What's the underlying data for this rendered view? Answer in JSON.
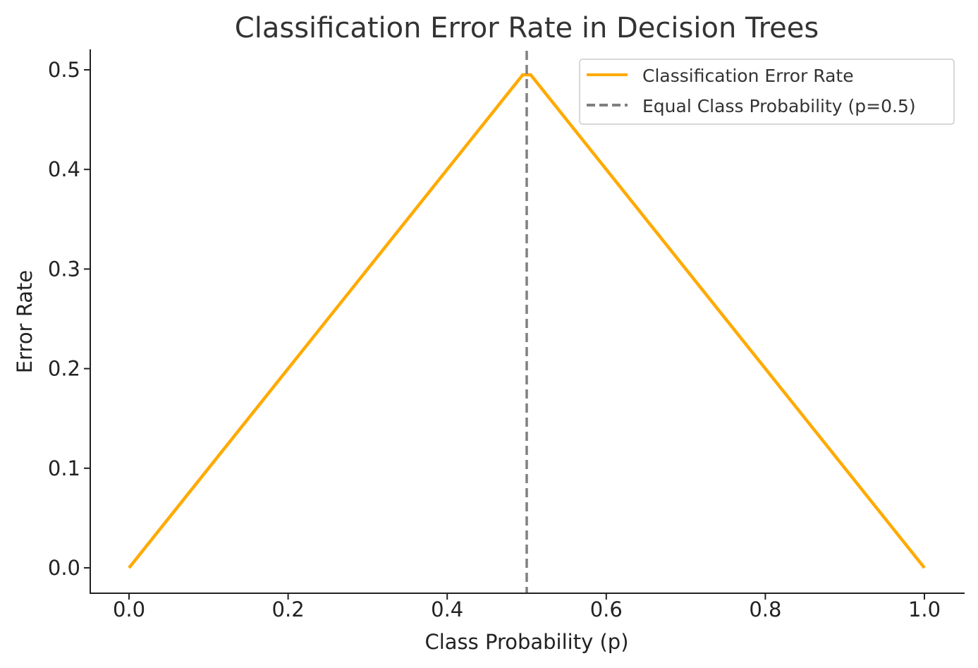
{
  "chart_data": {
    "type": "line",
    "title": "Classification Error Rate in Decision Trees",
    "xlabel": "Class Probability (p)",
    "ylabel": "Error Rate",
    "xlim": [
      -0.05,
      1.05
    ],
    "ylim": [
      -0.025,
      0.52
    ],
    "x_ticks": [
      "0.0",
      "0.2",
      "0.4",
      "0.6",
      "0.8",
      "1.0"
    ],
    "y_ticks": [
      "0.0",
      "0.1",
      "0.2",
      "0.3",
      "0.4",
      "0.5"
    ],
    "grid": false,
    "legend_position": "top-right",
    "series": [
      {
        "name": "Classification Error Rate",
        "color": "#FFAA00",
        "style": "solid",
        "x": [
          0.0,
          0.495,
          0.505,
          1.0
        ],
        "y": [
          0.0,
          0.495,
          0.495,
          0.0
        ]
      }
    ],
    "vlines": [
      {
        "name": "Equal Class Probability (p=0.5)",
        "x": 0.5,
        "color": "#808080",
        "style": "dashed"
      }
    ]
  }
}
